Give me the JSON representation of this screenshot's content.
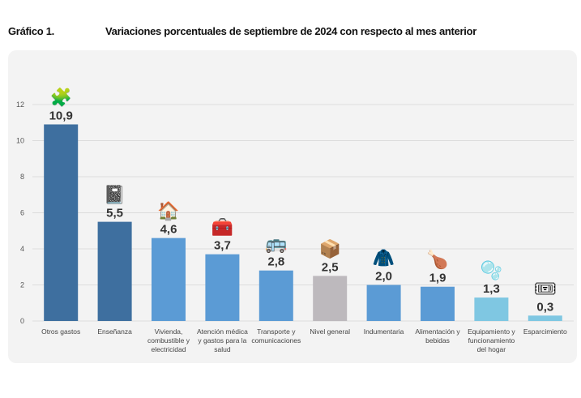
{
  "header": {
    "label": "Gráfico 1.",
    "title": "Variaciones porcentuales de septiembre de 2024 con respecto al mes anterior"
  },
  "chart_data": {
    "type": "bar",
    "title": "Variaciones porcentuales de septiembre de 2024 con respecto al mes anterior",
    "categories": [
      [
        "Otros gastos"
      ],
      [
        "Enseñanza"
      ],
      [
        "Vivienda,",
        "combustible y",
        "electricidad"
      ],
      [
        "Atención médica",
        "y gastos para la",
        "salud"
      ],
      [
        "Transporte y",
        "comunicaciones"
      ],
      [
        "Nivel general"
      ],
      [
        "Indumentaria"
      ],
      [
        "Alimentación y",
        "bebidas"
      ],
      [
        "Equipamiento y",
        "funcionamiento",
        "del hogar"
      ],
      [
        "Esparcimiento"
      ]
    ],
    "values": [
      10.9,
      5.5,
      4.6,
      3.7,
      2.8,
      2.5,
      2.0,
      1.9,
      1.3,
      0.3
    ],
    "value_labels": [
      "10,9",
      "5,5",
      "4,6",
      "3,7",
      "2,8",
      "2,5",
      "2,0",
      "1,9",
      "1,3",
      "0,3"
    ],
    "ylim": [
      0,
      12
    ],
    "yticks": [
      0,
      2,
      4,
      6,
      8,
      10,
      12
    ],
    "grid": true,
    "colors": [
      "#3e6f9f",
      "#3e6f9f",
      "#5b9bd5",
      "#5b9bd5",
      "#5b9bd5",
      "#bdb9bd",
      "#5b9bd5",
      "#5b9bd5",
      "#7fc7e2",
      "#7fc7e2"
    ],
    "icons": [
      "puzzle-money-icon",
      "notebook-icon",
      "house-icon",
      "medical-kit-icon",
      "bus-phone-icon",
      "box-icon",
      "jacket-icon",
      "food-icon",
      "washing-machine-icon",
      "ticket-music-icon"
    ]
  }
}
